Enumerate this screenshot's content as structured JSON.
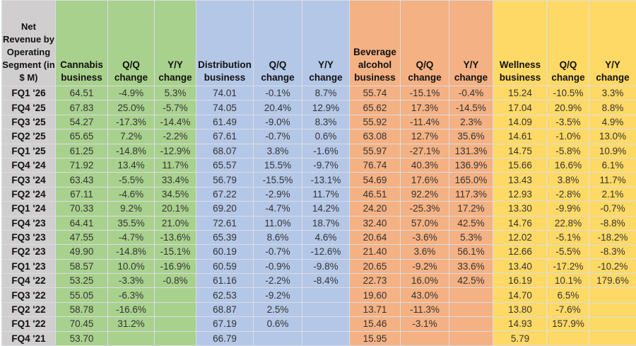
{
  "colors": {
    "label": "#d0cece",
    "cannabis": "#a9d18e",
    "distribution": "#b4c7e7",
    "beverage": "#f4b183",
    "wellness": "#ffd966"
  },
  "headers": [
    "Net Revenue by Operating Segment (in $ M)",
    "Cannabis business",
    "Q/Q change",
    "Y/Y change",
    "Distribution business",
    "Q/Q change",
    "Y/Y change",
    "Beverage alcohol business",
    "Q/Q change",
    "Y/Y change",
    "Wellness business",
    "Q/Q change",
    "Y/Y change"
  ],
  "rows": [
    [
      "FQ1 '26",
      "64.51",
      "-4.9%",
      "5.3%",
      "74.01",
      "-0.1%",
      "8.7%",
      "55.74",
      "-15.1%",
      "-0.4%",
      "15.24",
      "-10.5%",
      "3.3%"
    ],
    [
      "FQ4 '25",
      "67.83",
      "25.0%",
      "-5.7%",
      "74.05",
      "20.4%",
      "12.9%",
      "65.62",
      "17.3%",
      "-14.5%",
      "17.04",
      "20.9%",
      "8.8%"
    ],
    [
      "FQ3 '25",
      "54.27",
      "-17.3%",
      "-14.4%",
      "61.49",
      "-9.0%",
      "8.3%",
      "55.92",
      "-11.4%",
      "2.3%",
      "14.09",
      "-3.5%",
      "4.9%"
    ],
    [
      "FQ2 '25",
      "65.65",
      "7.2%",
      "-2.2%",
      "67.61",
      "-0.7%",
      "0.6%",
      "63.08",
      "12.7%",
      "35.6%",
      "14.61",
      "-1.0%",
      "13.0%"
    ],
    [
      "FQ1 '25",
      "61.25",
      "-14.8%",
      "-12.9%",
      "68.07",
      "3.8%",
      "-1.6%",
      "55.97",
      "-27.1%",
      "131.3%",
      "14.75",
      "-5.8%",
      "10.9%"
    ],
    [
      "FQ4 '24",
      "71.92",
      "13.4%",
      "11.7%",
      "65.57",
      "15.5%",
      "-9.7%",
      "76.74",
      "40.3%",
      "136.9%",
      "15.66",
      "16.6%",
      "6.1%"
    ],
    [
      "FQ3 '24",
      "63.43",
      "-5.5%",
      "33.4%",
      "56.79",
      "-15.5%",
      "-13.1%",
      "54.69",
      "17.6%",
      "165.0%",
      "13.43",
      "3.8%",
      "11.7%"
    ],
    [
      "FQ2 '24",
      "67.11",
      "-4.6%",
      "34.5%",
      "67.22",
      "-2.9%",
      "11.7%",
      "46.51",
      "92.2%",
      "117.3%",
      "12.93",
      "-2.8%",
      "2.1%"
    ],
    [
      "FQ1 '24",
      "70.33",
      "9.2%",
      "20.1%",
      "69.20",
      "-4.7%",
      "14.2%",
      "24.20",
      "-25.3%",
      "17.2%",
      "13.30",
      "-9.9%",
      "-0.7%"
    ],
    [
      "FQ4 '23",
      "64.41",
      "35.5%",
      "21.0%",
      "72.61",
      "11.0%",
      "18.7%",
      "32.40",
      "57.0%",
      "42.5%",
      "14.76",
      "22.8%",
      "-8.8%"
    ],
    [
      "FQ3 '23",
      "47.55",
      "-4.7%",
      "-13.6%",
      "65.39",
      "8.6%",
      "4.6%",
      "20.64",
      "-3.6%",
      "5.3%",
      "12.02",
      "-5.1%",
      "-18.2%"
    ],
    [
      "FQ2 '23",
      "49.90",
      "-14.8%",
      "-15.1%",
      "60.19",
      "-0.7%",
      "-12.6%",
      "21.40",
      "3.6%",
      "56.1%",
      "12.66",
      "-5.5%",
      "-8.3%"
    ],
    [
      "FQ1 '23",
      "58.57",
      "10.0%",
      "-16.9%",
      "60.59",
      "-0.9%",
      "-9.8%",
      "20.65",
      "-9.2%",
      "33.6%",
      "13.40",
      "-17.2%",
      "-10.2%"
    ],
    [
      "FQ4 '22",
      "53.25",
      "-3.3%",
      "-0.8%",
      "61.16",
      "-2.2%",
      "-8.4%",
      "22.73",
      "16.0%",
      "42.5%",
      "16.19",
      "10.1%",
      "179.6%"
    ],
    [
      "FQ3 '22",
      "55.05",
      "-6.3%",
      "",
      "62.53",
      "-9.2%",
      "",
      "19.60",
      "43.0%",
      "",
      "14.70",
      "6.5%",
      ""
    ],
    [
      "FQ2 '22",
      "58.78",
      "-16.6%",
      "",
      "68.87",
      "2.5%",
      "",
      "13.71",
      "-11.3%",
      "",
      "13.80",
      "-7.6%",
      ""
    ],
    [
      "FQ1 '22",
      "70.45",
      "31.2%",
      "",
      "67.19",
      "0.6%",
      "",
      "15.46",
      "-3.1%",
      "",
      "14.93",
      "157.9%",
      ""
    ],
    [
      "FQ4 '21",
      "53.70",
      "",
      "",
      "66.79",
      "",
      "",
      "15.95",
      "",
      "",
      "5.79",
      "",
      ""
    ]
  ]
}
